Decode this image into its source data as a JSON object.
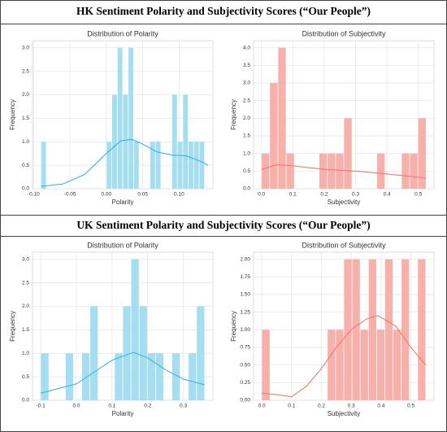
{
  "sections": [
    {
      "title": "HK Sentiment Polarity and Subjectivity Scores (“Our People”)"
    },
    {
      "title": "UK Sentiment Polarity and Subjectivity Scores (“Our People”)"
    }
  ],
  "chart_data": [
    {
      "type": "histogram",
      "title": "Distribution of Polarity",
      "xlabel": "Polarity",
      "ylabel": "Frequency",
      "bins": [
        -0.09,
        -0.0825,
        -0.075,
        -0.0675,
        -0.06,
        -0.0525,
        -0.045,
        -0.0375,
        -0.03,
        -0.0225,
        -0.015,
        -0.0075,
        0,
        0.0075,
        0.015,
        0.0225,
        0.03,
        0.0375,
        0.045,
        0.0525,
        0.06,
        0.0675,
        0.075,
        0.0825,
        0.09,
        0.0975,
        0.105,
        0.1125,
        0.12,
        0.1275,
        0.135
      ],
      "counts": [
        1,
        0,
        0,
        0,
        0,
        0,
        0,
        0,
        0,
        0,
        0,
        0,
        1,
        2,
        3,
        2,
        3,
        1,
        0,
        0,
        1,
        1,
        0,
        0,
        2,
        1,
        2,
        1,
        1,
        1
      ],
      "color": "#a6def1",
      "line_color": "#3bb5dc",
      "kde": {
        "x": [
          -0.09,
          -0.06,
          -0.03,
          0,
          0.02,
          0.035,
          0.05,
          0.07,
          0.09,
          0.11,
          0.13,
          0.14
        ],
        "y": [
          0.05,
          0.1,
          0.3,
          0.75,
          1.02,
          1.05,
          0.95,
          0.78,
          0.72,
          0.7,
          0.58,
          0.5
        ]
      },
      "xlim": [
        -0.1015,
        0.1465
      ],
      "xticks": [
        {
          "value": -0.1,
          "label": "-0.10"
        },
        -0.05,
        {
          "value": 0,
          "label": "0.00"
        },
        0.05,
        {
          "value": 0.1,
          "label": "0.10"
        }
      ],
      "ylim": [
        0,
        3.15
      ],
      "yticks": [
        {
          "value": 0,
          "label": "0.0"
        },
        0.5,
        {
          "value": 1,
          "label": "1.0"
        },
        1.5,
        {
          "value": 2,
          "label": "2.0"
        },
        2.5,
        {
          "value": 3,
          "label": "3.0"
        }
      ],
      "grid": true
    },
    {
      "type": "histogram",
      "title": "Distribution of Subjectivity",
      "xlabel": "Subjectivity",
      "ylabel": "Frequency",
      "bins": [
        0,
        0.02625,
        0.0525,
        0.07875,
        0.105,
        0.13125,
        0.1575,
        0.18375,
        0.21,
        0.23625,
        0.2625,
        0.28875,
        0.315,
        0.34125,
        0.3675,
        0.39375,
        0.42,
        0.44625,
        0.4725,
        0.49875,
        0.525
      ],
      "counts": [
        1,
        3,
        4,
        1,
        0,
        0,
        0,
        1,
        1,
        1,
        2,
        0,
        0,
        0,
        1,
        0,
        0,
        1,
        1,
        2
      ],
      "color": "#f8b0aa",
      "line_color": "#ee7b70",
      "kde": {
        "x": [
          0,
          0.05,
          0.1,
          0.2,
          0.3,
          0.4,
          0.525
        ],
        "y": [
          0.55,
          0.68,
          0.65,
          0.55,
          0.5,
          0.42,
          0.3
        ]
      },
      "xlim": [
        -0.025,
        0.55
      ],
      "xticks": [
        {
          "value": 0,
          "label": "0.0"
        },
        0.1,
        0.2,
        0.3,
        0.4,
        0.5
      ],
      "ylim": [
        0,
        4.2
      ],
      "yticks": [
        {
          "value": 0,
          "label": "0.0"
        },
        0.5,
        {
          "value": 1,
          "label": "1.0"
        },
        1.5,
        {
          "value": 2,
          "label": "2.0"
        },
        2.5,
        {
          "value": 3,
          "label": "3.0"
        },
        3.5,
        {
          "value": 4,
          "label": "4.0"
        }
      ],
      "grid": true
    },
    {
      "type": "histogram",
      "title": "Distribution of Polarity",
      "xlabel": "Polarity",
      "ylabel": "Frequency",
      "bins": [
        -0.1,
        -0.077,
        -0.054,
        -0.031,
        -0.008,
        0.015,
        0.038,
        0.061,
        0.084,
        0.107,
        0.13,
        0.153,
        0.176,
        0.199,
        0.222,
        0.245,
        0.268,
        0.291,
        0.314,
        0.337,
        0.36
      ],
      "counts": [
        1,
        0,
        0,
        1,
        0,
        1,
        2,
        0,
        0,
        1,
        2,
        3,
        2,
        1,
        1,
        0,
        1,
        0,
        1,
        2
      ],
      "color": "#a6def1",
      "line_color": "#3bb5dc",
      "kde": {
        "x": [
          -0.1,
          0,
          0.05,
          0.1,
          0.16,
          0.2,
          0.25,
          0.3,
          0.36
        ],
        "y": [
          0.15,
          0.35,
          0.6,
          0.85,
          1.02,
          0.9,
          0.65,
          0.45,
          0.33
        ]
      },
      "xlim": [
        -0.123,
        0.383
      ],
      "xticks": [
        -0.1,
        {
          "value": 0,
          "label": "0.0"
        },
        0.1,
        0.2,
        0.3
      ],
      "ylim": [
        0,
        3.15
      ],
      "yticks": [
        {
          "value": 0,
          "label": "0.0"
        },
        0.5,
        {
          "value": 1,
          "label": "1.0"
        },
        1.5,
        {
          "value": 2,
          "label": "2.0"
        },
        2.5,
        {
          "value": 3,
          "label": "3.0"
        }
      ],
      "grid": true
    },
    {
      "type": "histogram",
      "title": "Distribution of Subjectivity",
      "xlabel": "Subjectivity",
      "ylabel": "Frequency",
      "bins": [
        0,
        0.0275,
        0.055,
        0.0825,
        0.11,
        0.1375,
        0.165,
        0.1925,
        0.22,
        0.2475,
        0.275,
        0.3025,
        0.33,
        0.3575,
        0.385,
        0.4125,
        0.44,
        0.4675,
        0.495,
        0.5225,
        0.55
      ],
      "counts": [
        1,
        0,
        0,
        0,
        0,
        0,
        0,
        0,
        1,
        1,
        2,
        2,
        1,
        2,
        1,
        2,
        1,
        2,
        0,
        2
      ],
      "color": "#f8b0aa",
      "line_color": "#ee7b70",
      "kde": {
        "x": [
          0,
          0.05,
          0.1,
          0.15,
          0.2,
          0.25,
          0.3,
          0.35,
          0.39,
          0.45,
          0.5,
          0.55
        ],
        "y": [
          0.1,
          0.08,
          0.05,
          0.2,
          0.45,
          0.75,
          1.0,
          1.15,
          1.2,
          1.05,
          0.75,
          0.5
        ]
      },
      "xlim": [
        -0.0275,
        0.5775
      ],
      "xticks": [
        {
          "value": 0,
          "label": "0.0"
        },
        0.1,
        0.2,
        0.3,
        0.4,
        0.5
      ],
      "ylim": [
        0,
        2.1
      ],
      "yticks": [
        {
          "value": 0,
          "label": "0.00"
        },
        0.25,
        {
          "value": 0.5,
          "label": "0.50"
        },
        0.75,
        {
          "value": 1,
          "label": "1.00"
        },
        1.25,
        {
          "value": 1.5,
          "label": "1.50"
        },
        1.75,
        {
          "value": 2,
          "label": "2.00"
        }
      ],
      "grid": true
    }
  ]
}
